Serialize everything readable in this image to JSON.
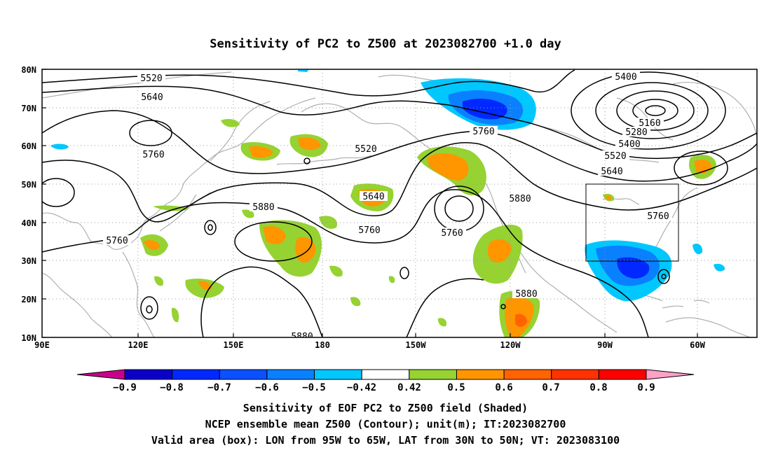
{
  "title": "Sensitivity of PC2 to Z500 at 2023082700 +1.0 day",
  "map": {
    "lat_labels": [
      "80N",
      "70N",
      "60N",
      "50N",
      "40N",
      "30N",
      "20N",
      "10N"
    ],
    "lon_labels": [
      "90E",
      "120E",
      "150E",
      "180",
      "150W",
      "120W",
      "90W",
      "60W"
    ],
    "coastline_color": "#b0b0b0",
    "grid": "dotted",
    "valid_box": {
      "lon": [
        "95W",
        "65W"
      ],
      "lat": [
        "30N",
        "50N"
      ]
    }
  },
  "contours": {
    "labels": [
      {
        "value": "5520"
      },
      {
        "value": "5640"
      },
      {
        "value": "5760"
      },
      {
        "value": "5520"
      },
      {
        "value": "5760"
      },
      {
        "value": "5400"
      },
      {
        "value": "5160"
      },
      {
        "value": "5280"
      },
      {
        "value": "5400"
      },
      {
        "value": "5520"
      },
      {
        "value": "5640"
      },
      {
        "value": "5640"
      },
      {
        "value": "5880"
      },
      {
        "value": "5760"
      },
      {
        "value": "5760"
      },
      {
        "value": "5880"
      },
      {
        "value": "5760"
      },
      {
        "value": "5760"
      },
      {
        "value": "5880"
      },
      {
        "value": "5880"
      }
    ]
  },
  "colorbar": {
    "colors": [
      "#c8008c",
      "#0a00c8",
      "#0028ff",
      "#0a50ff",
      "#0a80ff",
      "#00c8ff",
      "#ffffff",
      "#96d232",
      "#ff9600",
      "#ff6400",
      "#ff3200",
      "#ff0000",
      "#ffa0c8"
    ],
    "labels": [
      "−0.9",
      "−0.8",
      "−0.7",
      "−0.6",
      "−0.5",
      "−0.42",
      "0.42",
      "0.5",
      "0.6",
      "0.7",
      "0.8",
      "0.9"
    ]
  },
  "caption": [
    "Sensitivity of EOF PC2 to Z500 field (Shaded)",
    "NCEP ensemble mean Z500 (Contour); unit(m); IT:2023082700",
    "Valid area (box): LON from 95W to 65W, LAT from 30N to 50N; VT: 2023083100"
  ]
}
